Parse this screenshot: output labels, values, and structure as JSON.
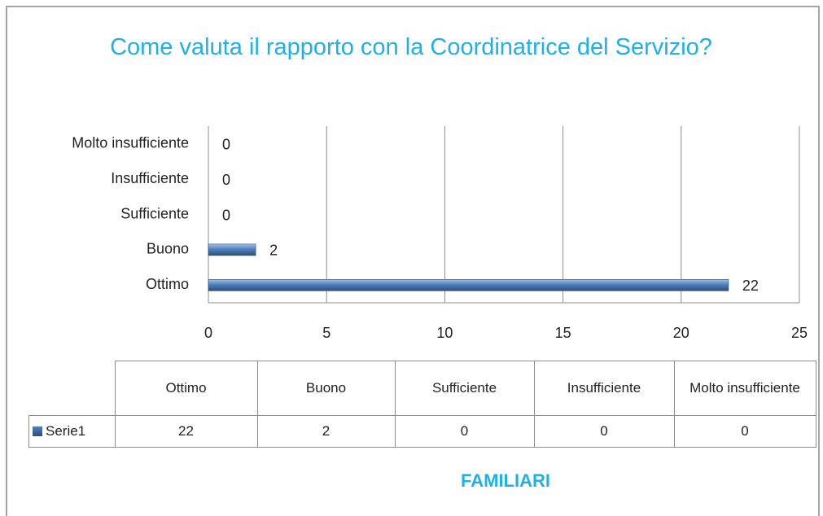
{
  "chart_data": {
    "type": "barh",
    "title": "Come valuta il rapporto con la Coordinatrice del Servizio?",
    "categories": [
      "Ottimo",
      "Buono",
      "Sufficiente",
      "Insufficiente",
      "Molto insufficiente"
    ],
    "series": [
      {
        "name": "Serie1",
        "color": "#4f81bd",
        "values": [
          22,
          2,
          0,
          0,
          0
        ]
      }
    ],
    "xlim": [
      0,
      25
    ],
    "xticks": [
      0,
      5,
      10,
      15,
      20,
      25
    ],
    "grid": true,
    "x_label": "FAMILIARI"
  }
}
